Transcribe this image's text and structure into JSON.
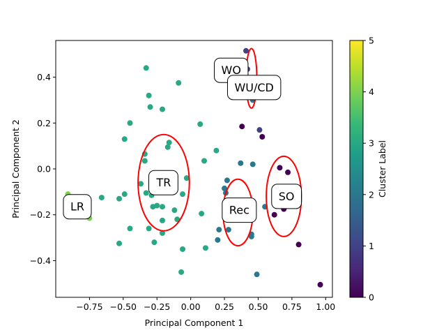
{
  "chart_data": {
    "type": "scatter",
    "xlabel": "Principal Component 1",
    "ylabel": "Principal Component 2",
    "xlim": [
      -1.0,
      1.05
    ],
    "ylim": [
      -0.56,
      0.56
    ],
    "xticks": [
      -0.75,
      -0.5,
      -0.25,
      0.0,
      0.25,
      0.5,
      0.75,
      1.0
    ],
    "xtick_labels": [
      "−0.75",
      "−0.50",
      "−0.25",
      "0.00",
      "0.25",
      "0.50",
      "0.75",
      "1.00"
    ],
    "yticks": [
      -0.4,
      -0.2,
      0.0,
      0.2,
      0.4
    ],
    "ytick_labels": [
      "−0.4",
      "−0.2",
      "0.0",
      "0.2",
      "0.4"
    ],
    "grid": false,
    "colormap": "viridis",
    "colorbar": {
      "label": "Cluster Label",
      "range": [
        0,
        5
      ],
      "ticks": [
        0,
        1,
        2,
        3,
        4,
        5
      ],
      "tick_labels": [
        "0",
        "1",
        "2",
        "3",
        "4",
        "5"
      ],
      "colors": [
        "#440154",
        "#482878",
        "#3e4989",
        "#31688e",
        "#26828e",
        "#1f9e89",
        "#35b779",
        "#6ece58",
        "#b5de2b",
        "#fde725"
      ]
    },
    "points": [
      {
        "x": -0.91,
        "y": -0.11,
        "label": 4
      },
      {
        "x": -0.75,
        "y": -0.215,
        "label": 4
      },
      {
        "x": -0.66,
        "y": -0.125,
        "label": 3
      },
      {
        "x": -0.53,
        "y": -0.13,
        "label": 3
      },
      {
        "x": -0.53,
        "y": -0.325,
        "label": 3
      },
      {
        "x": -0.49,
        "y": -0.11,
        "label": 3
      },
      {
        "x": -0.49,
        "y": 0.13,
        "label": 3
      },
      {
        "x": -0.45,
        "y": 0.2,
        "label": 3
      },
      {
        "x": -0.45,
        "y": -0.26,
        "label": 3
      },
      {
        "x": -0.37,
        "y": -0.065,
        "label": 3
      },
      {
        "x": -0.34,
        "y": 0.065,
        "label": 3
      },
      {
        "x": -0.34,
        "y": 0.035,
        "label": 3
      },
      {
        "x": -0.33,
        "y": -0.105,
        "label": 3
      },
      {
        "x": -0.33,
        "y": 0.44,
        "label": 3
      },
      {
        "x": -0.31,
        "y": 0.32,
        "label": 3
      },
      {
        "x": -0.3,
        "y": 0.27,
        "label": 3
      },
      {
        "x": -0.31,
        "y": -0.26,
        "label": 3
      },
      {
        "x": -0.29,
        "y": -0.115,
        "label": 3
      },
      {
        "x": -0.28,
        "y": -0.165,
        "label": 3
      },
      {
        "x": -0.27,
        "y": -0.32,
        "label": 3
      },
      {
        "x": -0.25,
        "y": -0.16,
        "label": 3
      },
      {
        "x": -0.21,
        "y": 0.26,
        "label": 3
      },
      {
        "x": -0.21,
        "y": -0.165,
        "label": 3
      },
      {
        "x": -0.21,
        "y": -0.225,
        "label": 3
      },
      {
        "x": -0.21,
        "y": -0.28,
        "label": 3
      },
      {
        "x": -0.17,
        "y": 0.095,
        "label": 3
      },
      {
        "x": -0.16,
        "y": 0.115,
        "label": 3
      },
      {
        "x": -0.12,
        "y": -0.18,
        "label": 3
      },
      {
        "x": -0.1,
        "y": -0.22,
        "label": 3
      },
      {
        "x": -0.09,
        "y": 0.375,
        "label": 3
      },
      {
        "x": -0.07,
        "y": -0.45,
        "label": 3
      },
      {
        "x": -0.06,
        "y": -0.11,
        "label": 3
      },
      {
        "x": -0.06,
        "y": -0.35,
        "label": 3
      },
      {
        "x": -0.03,
        "y": -0.04,
        "label": 3
      },
      {
        "x": 0.07,
        "y": 0.195,
        "label": 3
      },
      {
        "x": 0.08,
        "y": -0.195,
        "label": 3
      },
      {
        "x": 0.1,
        "y": 0.035,
        "label": 3
      },
      {
        "x": 0.11,
        "y": -0.345,
        "label": 3
      },
      {
        "x": 0.19,
        "y": 0.08,
        "label": 3
      },
      {
        "x": 0.2,
        "y": -0.31,
        "label": 2
      },
      {
        "x": 0.21,
        "y": -0.265,
        "label": 2
      },
      {
        "x": 0.25,
        "y": -0.085,
        "label": 2
      },
      {
        "x": 0.26,
        "y": -0.105,
        "label": 2
      },
      {
        "x": 0.27,
        "y": -0.05,
        "label": 2
      },
      {
        "x": 0.28,
        "y": -0.265,
        "label": 2
      },
      {
        "x": 0.37,
        "y": 0.025,
        "label": 2
      },
      {
        "x": 0.38,
        "y": 0.185,
        "label": 0
      },
      {
        "x": 0.41,
        "y": 0.515,
        "label": 1
      },
      {
        "x": 0.42,
        "y": 0.435,
        "label": 1
      },
      {
        "x": 0.45,
        "y": -0.285,
        "label": 2
      },
      {
        "x": 0.45,
        "y": -0.295,
        "label": 2
      },
      {
        "x": 0.46,
        "y": 0.02,
        "label": 2
      },
      {
        "x": 0.46,
        "y": 0.3,
        "label": 2
      },
      {
        "x": 0.49,
        "y": -0.46,
        "label": 2
      },
      {
        "x": 0.51,
        "y": 0.17,
        "label": 1
      },
      {
        "x": 0.53,
        "y": 0.14,
        "label": 0
      },
      {
        "x": 0.55,
        "y": -0.165,
        "label": 2
      },
      {
        "x": 0.62,
        "y": -0.2,
        "label": 0
      },
      {
        "x": 0.66,
        "y": 0.005,
        "label": 0
      },
      {
        "x": 0.69,
        "y": -0.175,
        "label": 0
      },
      {
        "x": 0.72,
        "y": -0.015,
        "label": 0
      },
      {
        "x": 0.8,
        "y": -0.33,
        "label": 0
      },
      {
        "x": 0.96,
        "y": -0.505,
        "label": 0
      }
    ],
    "ellipses": [
      {
        "cx": -0.2,
        "cy": -0.06,
        "rx": 0.19,
        "ry": 0.21
      },
      {
        "cx": 0.35,
        "cy": -0.19,
        "rx": 0.11,
        "ry": 0.145
      },
      {
        "cx": 0.45,
        "cy": 0.395,
        "rx": 0.04,
        "ry": 0.13
      },
      {
        "cx": 0.69,
        "cy": -0.12,
        "rx": 0.13,
        "ry": 0.175
      }
    ],
    "annotations": [
      {
        "text": "WO",
        "x": 0.3,
        "y": 0.43
      },
      {
        "text": "WU/CD",
        "x": 0.47,
        "y": 0.355
      },
      {
        "text": "TR",
        "x": -0.2,
        "y": -0.06
      },
      {
        "text": "Rec",
        "x": 0.36,
        "y": -0.18
      },
      {
        "text": "SO",
        "x": 0.71,
        "y": -0.12
      },
      {
        "text": "LR",
        "x": -0.84,
        "y": -0.165
      }
    ],
    "ellipse_color": "#ff0000"
  }
}
